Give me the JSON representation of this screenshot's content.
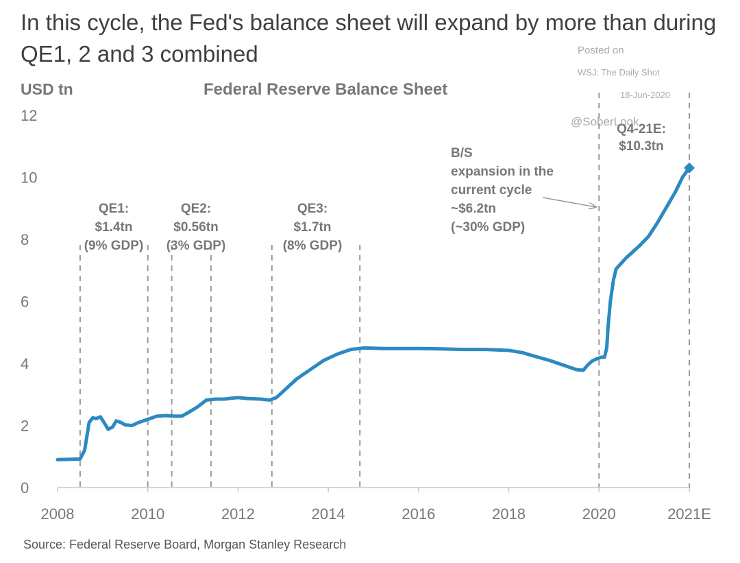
{
  "header": {
    "line1": "In this cycle, the Fed's balance sheet will expand by more than during",
    "line2": "QE1, 2 and 3 combined"
  },
  "watermark": {
    "posted_on": "Posted on",
    "outlet": "WSJ: The Daily Shot",
    "date": "18-Jun-2020",
    "handle": "@SoberLook"
  },
  "footer": {
    "source": "Source: Federal Reserve Board, Morgan Stanley Research"
  },
  "chart_data": {
    "type": "line",
    "title": "Federal Reserve Balance Sheet",
    "ylabel": "USD tn",
    "xlabel": "",
    "ylim": [
      0,
      12
    ],
    "xlim": [
      2008,
      2022
    ],
    "yticks": [
      "0",
      "2",
      "4",
      "6",
      "8",
      "10",
      "12"
    ],
    "xticks": [
      {
        "value": 2008,
        "label": "2008"
      },
      {
        "value": 2010,
        "label": "2010"
      },
      {
        "value": 2012,
        "label": "2012"
      },
      {
        "value": 2014,
        "label": "2014"
      },
      {
        "value": 2016,
        "label": "2016"
      },
      {
        "value": 2018,
        "label": "2018"
      },
      {
        "value": 2020,
        "label": "2020"
      },
      {
        "value": 2022,
        "label": "2021E"
      }
    ],
    "line_color": "#2c8ac1",
    "series": [
      {
        "name": "Federal Reserve Balance Sheet",
        "points": [
          [
            2008.0,
            0.9
          ],
          [
            2008.5,
            0.92
          ],
          [
            2008.6,
            1.2
          ],
          [
            2008.7,
            2.1
          ],
          [
            2008.78,
            2.25
          ],
          [
            2008.85,
            2.22
          ],
          [
            2008.95,
            2.28
          ],
          [
            2009.05,
            2.05
          ],
          [
            2009.12,
            1.88
          ],
          [
            2009.22,
            1.95
          ],
          [
            2009.3,
            2.15
          ],
          [
            2009.4,
            2.1
          ],
          [
            2009.5,
            2.02
          ],
          [
            2009.65,
            2.0
          ],
          [
            2009.8,
            2.1
          ],
          [
            2010.0,
            2.2
          ],
          [
            2010.2,
            2.3
          ],
          [
            2010.4,
            2.32
          ],
          [
            2010.6,
            2.3
          ],
          [
            2010.75,
            2.3
          ],
          [
            2010.9,
            2.42
          ],
          [
            2011.1,
            2.6
          ],
          [
            2011.3,
            2.82
          ],
          [
            2011.5,
            2.85
          ],
          [
            2011.7,
            2.85
          ],
          [
            2011.85,
            2.88
          ],
          [
            2012.0,
            2.9
          ],
          [
            2012.2,
            2.87
          ],
          [
            2012.5,
            2.85
          ],
          [
            2012.7,
            2.82
          ],
          [
            2012.85,
            2.9
          ],
          [
            2013.0,
            3.1
          ],
          [
            2013.3,
            3.5
          ],
          [
            2013.6,
            3.8
          ],
          [
            2013.9,
            4.1
          ],
          [
            2014.2,
            4.3
          ],
          [
            2014.5,
            4.45
          ],
          [
            2014.8,
            4.5
          ],
          [
            2015.2,
            4.48
          ],
          [
            2016.0,
            4.48
          ],
          [
            2016.5,
            4.47
          ],
          [
            2017.0,
            4.45
          ],
          [
            2017.5,
            4.45
          ],
          [
            2018.0,
            4.42
          ],
          [
            2018.3,
            4.35
          ],
          [
            2018.6,
            4.22
          ],
          [
            2018.9,
            4.1
          ],
          [
            2019.2,
            3.95
          ],
          [
            2019.5,
            3.8
          ],
          [
            2019.65,
            3.78
          ],
          [
            2019.75,
            3.95
          ],
          [
            2019.85,
            4.08
          ],
          [
            2019.95,
            4.15
          ],
          [
            2020.05,
            4.2
          ],
          [
            2020.12,
            4.2
          ],
          [
            2020.17,
            4.5
          ],
          [
            2020.2,
            5.2
          ],
          [
            2020.25,
            6.0
          ],
          [
            2020.32,
            6.7
          ],
          [
            2020.38,
            7.05
          ],
          [
            2020.6,
            7.4
          ],
          [
            2020.9,
            7.8
          ],
          [
            2021.1,
            8.1
          ],
          [
            2021.3,
            8.55
          ],
          [
            2021.5,
            9.05
          ],
          [
            2021.7,
            9.55
          ],
          [
            2021.85,
            10.0
          ],
          [
            2022.0,
            10.3
          ]
        ]
      }
    ],
    "vlines": [
      2008.5,
      2010.0,
      2010.53,
      2011.4,
      2012.75,
      2014.7,
      2020.0,
      2022.0
    ],
    "markers": [
      {
        "x": 2022.0,
        "y": 10.3
      }
    ],
    "annotations": [
      {
        "id": "qe1",
        "lines": [
          "QE1:",
          "$1.4tn",
          "(9% GDP)"
        ]
      },
      {
        "id": "qe2",
        "lines": [
          "QE2:",
          "$0.56tn",
          "(3% GDP)"
        ]
      },
      {
        "id": "qe3",
        "lines": [
          "QE3:",
          "$1.7tn",
          "(8% GDP)"
        ]
      },
      {
        "id": "bs",
        "lines": [
          "B/S",
          "expansion in the",
          "current cycle",
          "~$6.2tn",
          "(~30% GDP)"
        ]
      },
      {
        "id": "q4",
        "lines": [
          "Q4-21E:",
          "$10.3tn"
        ]
      }
    ]
  }
}
